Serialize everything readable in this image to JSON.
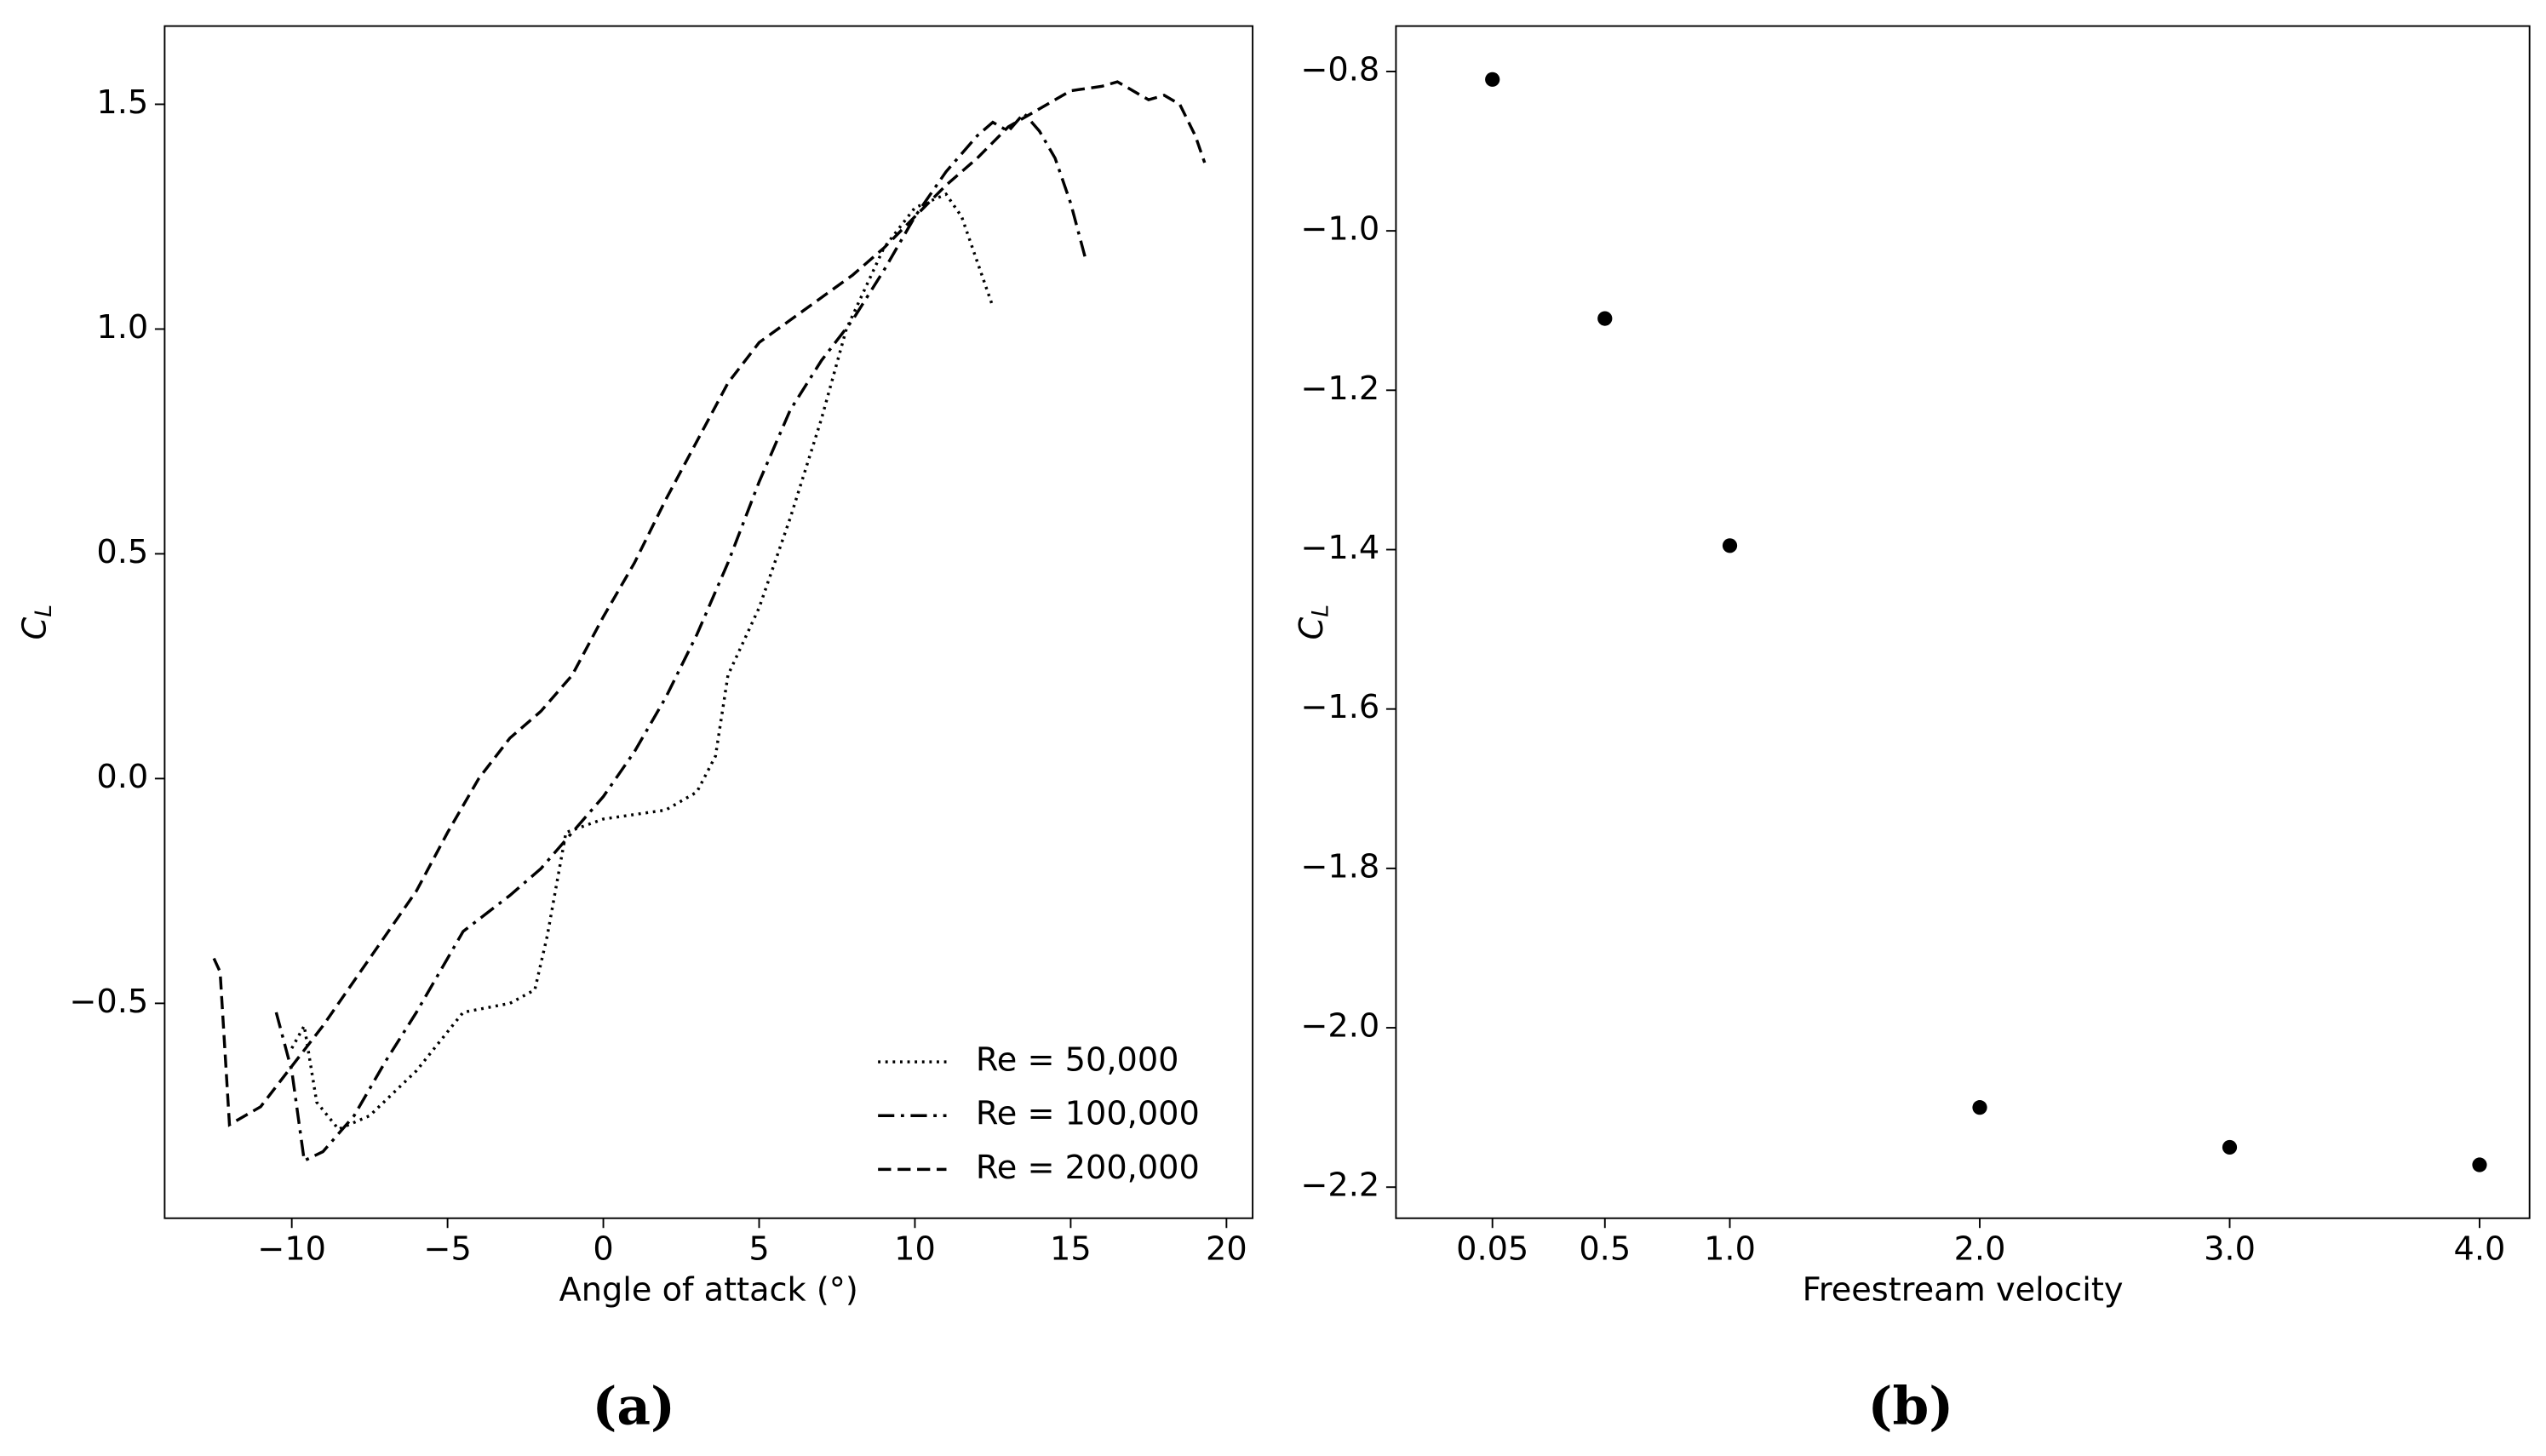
{
  "chart_data": [
    {
      "type": "line",
      "caption": "(a)",
      "xlabel": "Angle of attack (°)",
      "ylabel": "C",
      "ylabel_subscript": "L",
      "xlim": [
        -14.08,
        20.84
      ],
      "ylim": [
        -0.978,
        1.674
      ],
      "xticks": [
        {
          "value": -10,
          "label": "−10"
        },
        {
          "value": -5,
          "label": "−5"
        },
        0,
        5,
        10,
        15,
        20
      ],
      "yticks": [
        {
          "value": -0.5,
          "label": "−0.5"
        },
        {
          "value": 0,
          "label": "0.0"
        },
        0.5,
        {
          "value": 1,
          "label": "1.0"
        },
        1.5
      ],
      "legend": "lower right",
      "series": [
        {
          "name": "Re = 50,000",
          "color": "#000000",
          "linestyle": "dotted",
          "x": [
            -10,
            -9.6,
            -9.2,
            -8.5,
            -7.5,
            -6,
            -4.5,
            -3,
            -2.2,
            -1.8,
            -1.2,
            0,
            2,
            3,
            3.6,
            4,
            5,
            6,
            7,
            7.8,
            9,
            10,
            11,
            11.5,
            12,
            12.5
          ],
          "values": [
            -0.6,
            -0.55,
            -0.72,
            -0.78,
            -0.75,
            -0.65,
            -0.52,
            -0.5,
            -0.47,
            -0.35,
            -0.12,
            -0.09,
            -0.07,
            -0.03,
            0.05,
            0.23,
            0.38,
            0.58,
            0.8,
            1.0,
            1.18,
            1.27,
            1.3,
            1.25,
            1.15,
            1.05
          ]
        },
        {
          "name": "Re = 100,000",
          "color": "#000000",
          "linestyle": "dashdot",
          "x": [
            -10.5,
            -10,
            -9.6,
            -9,
            -8,
            -7,
            -6,
            -5,
            -4.5,
            -3,
            -2,
            -1,
            0,
            1,
            2,
            3,
            4,
            5,
            6,
            7,
            8,
            9,
            10,
            11,
            12,
            12.5,
            13,
            13.5,
            14,
            14.5,
            15,
            15.5
          ],
          "values": [
            -0.52,
            -0.65,
            -0.85,
            -0.83,
            -0.75,
            -0.63,
            -0.52,
            -0.4,
            -0.34,
            -0.26,
            -0.2,
            -0.12,
            -0.04,
            0.06,
            0.18,
            0.32,
            0.48,
            0.66,
            0.82,
            0.93,
            1.02,
            1.13,
            1.25,
            1.35,
            1.43,
            1.46,
            1.44,
            1.48,
            1.44,
            1.38,
            1.28,
            1.15
          ]
        },
        {
          "name": "Re = 200,000",
          "color": "#000000",
          "linestyle": "dashed",
          "x": [
            -12.5,
            -12.3,
            -12,
            -11,
            -10,
            -9,
            -8,
            -7,
            -6,
            -5,
            -4,
            -3,
            -2,
            -1,
            0,
            1,
            2,
            3,
            4,
            5,
            6,
            7,
            8,
            9,
            10,
            11,
            12,
            13,
            14,
            15,
            16,
            16.5,
            17,
            17.5,
            18,
            18.5,
            19,
            19.3
          ],
          "values": [
            -0.4,
            -0.43,
            -0.77,
            -0.73,
            -0.64,
            -0.55,
            -0.45,
            -0.35,
            -0.25,
            -0.12,
            0.0,
            0.09,
            0.15,
            0.23,
            0.36,
            0.48,
            0.62,
            0.75,
            0.88,
            0.97,
            1.02,
            1.07,
            1.12,
            1.18,
            1.25,
            1.32,
            1.38,
            1.45,
            1.49,
            1.53,
            1.54,
            1.55,
            1.53,
            1.51,
            1.52,
            1.5,
            1.43,
            1.37
          ]
        }
      ]
    },
    {
      "type": "scatter",
      "caption": "(b)",
      "xlabel": "Freestream velocity",
      "ylabel": "C",
      "ylabel_subscript": "L",
      "xlim": [
        -0.336,
        4.2
      ],
      "ylim": [
        -2.239,
        -0.743
      ],
      "xticks": [
        0.05,
        0.5,
        {
          "value": 1,
          "label": "1.0"
        },
        {
          "value": 2,
          "label": "2.0"
        },
        {
          "value": 3,
          "label": "3.0"
        },
        {
          "value": 4,
          "label": "4.0"
        }
      ],
      "yticks": [
        {
          "value": -2.2,
          "label": "−2.2"
        },
        {
          "value": -2.0,
          "label": "−2.0"
        },
        {
          "value": -1.8,
          "label": "−1.8"
        },
        {
          "value": -1.6,
          "label": "−1.6"
        },
        {
          "value": -1.4,
          "label": "−1.4"
        },
        {
          "value": -1.2,
          "label": "−1.2"
        },
        {
          "value": -1.0,
          "label": "−1.0"
        },
        {
          "value": -0.8,
          "label": "−0.8"
        }
      ],
      "color": "#000000",
      "x": [
        0.05,
        0.5,
        1.0,
        2.0,
        3.0,
        4.0
      ],
      "values": [
        -0.81,
        -1.11,
        -1.395,
        -2.1,
        -2.15,
        -2.172
      ]
    }
  ]
}
